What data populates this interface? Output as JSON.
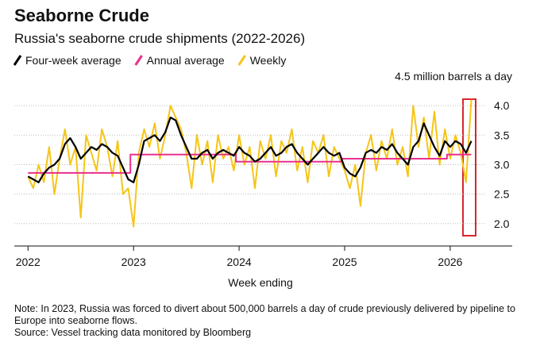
{
  "chart_data": {
    "type": "line",
    "title": "Seaborne Crude",
    "subtitle": "Russia's seaborne crude shipments (2022-2026)",
    "x_label": "Week ending",
    "note": "Note: In 2023, Russia was forced to divert about 500,000 barrels a day of crude previously delivered by pipeline to Europe into seaborne flows.",
    "source": "Source: Vessel tracking data monitored by Bloomberg",
    "xlim": [
      2021.87,
      2026.55
    ],
    "xticks": [
      2022,
      2023,
      2024,
      2025,
      2026
    ],
    "ylim": [
      1.62,
      4.5
    ],
    "yticks": [
      {
        "value": 4.5,
        "label": "4.5 million barrels a day"
      },
      {
        "value": 4.0,
        "label": "4.0"
      },
      {
        "value": 3.5,
        "label": "3.5"
      },
      {
        "value": 3.0,
        "label": "3.0"
      },
      {
        "value": 2.5,
        "label": "2.5"
      },
      {
        "value": 2.0,
        "label": "2.0"
      }
    ],
    "grid": true,
    "x": [
      2022,
      2022.05,
      2022.1,
      2022.15,
      2022.2,
      2022.25,
      2022.3,
      2022.35,
      2022.4,
      2022.45,
      2022.5,
      2022.55,
      2022.6,
      2022.65,
      2022.7,
      2022.75,
      2022.8,
      2022.85,
      2022.9,
      2022.95,
      2023,
      2023.05,
      2023.1,
      2023.15,
      2023.2,
      2023.25,
      2023.3,
      2023.35,
      2023.4,
      2023.45,
      2023.5,
      2023.55,
      2023.6,
      2023.65,
      2023.7,
      2023.75,
      2023.8,
      2023.85,
      2023.9,
      2023.95,
      2024,
      2024.05,
      2024.1,
      2024.15,
      2024.2,
      2024.25,
      2024.3,
      2024.35,
      2024.4,
      2024.45,
      2024.5,
      2024.55,
      2024.6,
      2024.65,
      2024.7,
      2024.75,
      2024.8,
      2024.85,
      2024.9,
      2024.95,
      2025,
      2025.05,
      2025.1,
      2025.15,
      2025.2,
      2025.25,
      2025.3,
      2025.35,
      2025.4,
      2025.45,
      2025.5,
      2025.55,
      2025.6,
      2025.65,
      2025.7,
      2025.75,
      2025.8,
      2025.85,
      2025.9,
      2025.95,
      2026,
      2026.05,
      2026.1,
      2026.15,
      2026.2
    ],
    "series": [
      {
        "name": "Four-week average",
        "color": "#000000",
        "width": 2.2,
        "values": [
          2.8,
          2.75,
          2.7,
          2.85,
          2.95,
          3.0,
          3.1,
          3.35,
          3.45,
          3.3,
          3.1,
          3.2,
          3.3,
          3.25,
          3.35,
          3.3,
          3.2,
          3.15,
          2.95,
          2.75,
          2.7,
          3.0,
          3.4,
          3.45,
          3.5,
          3.4,
          3.55,
          3.8,
          3.75,
          3.5,
          3.3,
          3.1,
          3.1,
          3.2,
          3.25,
          3.1,
          3.2,
          3.25,
          3.2,
          3.15,
          3.3,
          3.2,
          3.15,
          3.05,
          3.1,
          3.2,
          3.3,
          3.15,
          3.2,
          3.3,
          3.35,
          3.2,
          3.1,
          3.0,
          3.1,
          3.2,
          3.3,
          3.2,
          3.15,
          3.2,
          2.95,
          2.85,
          2.8,
          2.95,
          3.2,
          3.25,
          3.2,
          3.3,
          3.25,
          3.35,
          3.2,
          3.1,
          3.0,
          3.3,
          3.4,
          3.7,
          3.5,
          3.3,
          3.15,
          3.4,
          3.3,
          3.4,
          3.35,
          3.2,
          3.4
        ]
      },
      {
        "name": "Annual average",
        "color": "#e8308c",
        "width": 2,
        "x": [
          2022,
          2022.97,
          2022.97,
          2023.97,
          2023.97,
          2024.97,
          2024.97,
          2025.97,
          2025.97,
          2026.2
        ],
        "values": [
          2.86,
          2.86,
          3.17,
          3.17,
          3.05,
          3.05,
          3.1,
          3.1,
          3.17,
          3.17
        ]
      },
      {
        "name": "Weekly",
        "color": "#f5c518",
        "width": 2,
        "values": [
          2.8,
          2.6,
          3.0,
          2.7,
          3.3,
          2.5,
          3.1,
          3.6,
          3.0,
          3.3,
          2.1,
          3.5,
          3.2,
          2.9,
          3.6,
          3.3,
          2.8,
          3.4,
          2.5,
          2.6,
          1.95,
          3.2,
          3.6,
          3.3,
          3.7,
          3.1,
          3.5,
          4.0,
          3.8,
          3.6,
          3.2,
          2.6,
          3.5,
          3.0,
          3.4,
          2.7,
          3.5,
          3.1,
          3.3,
          2.9,
          3.5,
          3.0,
          3.3,
          2.6,
          3.4,
          3.1,
          3.5,
          2.8,
          3.4,
          3.2,
          3.6,
          2.9,
          3.3,
          2.7,
          3.4,
          3.2,
          3.5,
          2.8,
          3.3,
          3.1,
          2.9,
          2.6,
          3.0,
          2.3,
          3.2,
          3.5,
          2.9,
          3.4,
          3.1,
          3.6,
          3.0,
          3.3,
          2.8,
          4.0,
          3.3,
          3.8,
          3.1,
          3.9,
          3.0,
          3.6,
          3.1,
          3.5,
          3.2,
          2.7,
          4.1
        ]
      }
    ]
  }
}
